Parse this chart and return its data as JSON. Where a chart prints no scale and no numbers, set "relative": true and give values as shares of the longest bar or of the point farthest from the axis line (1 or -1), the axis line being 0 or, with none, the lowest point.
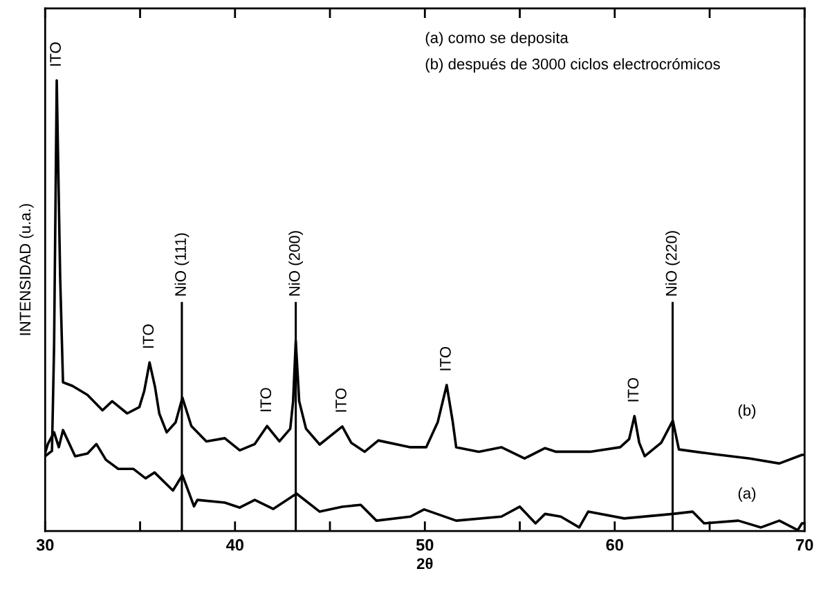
{
  "chart_data": {
    "type": "line",
    "relative": true,
    "xlabel": "2θ",
    "ylabel": "INTENSIDAD (u.a.)",
    "xlim": [
      30,
      70
    ],
    "xticks": [
      30,
      {
        "value": 35,
        "label": null
      },
      40,
      {
        "value": 45,
        "label": null
      },
      50,
      {
        "value": 55,
        "label": null
      },
      60,
      {
        "value": 65,
        "label": null
      },
      70
    ],
    "grid": false,
    "legend": false,
    "marker": "none",
    "line_style": "solid",
    "series": [
      {
        "name": "(b)",
        "color": "#000000",
        "x": [
          30.0,
          30.36,
          30.47,
          30.61,
          30.79,
          30.94,
          31.44,
          32.23,
          33.02,
          33.53,
          34.32,
          34.96,
          35.22,
          35.5,
          35.79,
          36.01,
          36.4,
          36.87,
          37.23,
          37.7,
          38.49,
          39.46,
          40.25,
          41.04,
          41.69,
          42.34,
          42.91,
          43.06,
          43.2,
          43.38,
          43.74,
          44.46,
          45.65,
          46.12,
          46.83,
          47.55,
          49.24,
          50.07,
          50.68,
          51.15,
          51.47,
          51.65,
          52.84,
          54.03,
          55.25,
          56.33,
          56.91,
          58.71,
          60.29,
          60.76,
          61.04,
          61.29,
          61.58,
          62.45,
          63.06,
          63.38,
          65.32,
          67.12,
          68.67,
          69.86,
          70.0
        ],
        "values": [
          0.166,
          0.178,
          0.41,
          1.0,
          0.564,
          0.33,
          0.322,
          0.302,
          0.268,
          0.288,
          0.261,
          0.275,
          0.311,
          0.374,
          0.319,
          0.261,
          0.219,
          0.241,
          0.296,
          0.233,
          0.199,
          0.206,
          0.179,
          0.193,
          0.233,
          0.199,
          0.227,
          0.288,
          0.422,
          0.288,
          0.227,
          0.192,
          0.232,
          0.196,
          0.176,
          0.201,
          0.186,
          0.186,
          0.242,
          0.324,
          0.242,
          0.186,
          0.176,
          0.186,
          0.161,
          0.184,
          0.176,
          0.176,
          0.186,
          0.204,
          0.255,
          0.196,
          0.166,
          0.196,
          0.245,
          0.181,
          0.17,
          0.161,
          0.15,
          0.169,
          0.169
        ]
      },
      {
        "name": "(a)",
        "color": "#000000",
        "x": [
          30.0,
          30.14,
          30.47,
          30.72,
          30.94,
          31.58,
          32.23,
          32.7,
          33.2,
          33.85,
          34.64,
          35.29,
          35.76,
          36.73,
          37.23,
          37.84,
          38.02,
          39.46,
          40.25,
          41.04,
          42.01,
          43.24,
          44.46,
          45.65,
          46.62,
          47.45,
          49.24,
          49.96,
          51.65,
          54.03,
          55.0,
          55.83,
          56.33,
          57.16,
          58.13,
          58.6,
          60.5,
          63.06,
          64.1,
          64.71,
          66.51,
          67.7,
          68.67,
          69.64,
          69.86,
          70.0
        ],
        "values": [
          0.173,
          0.193,
          0.219,
          0.186,
          0.224,
          0.166,
          0.172,
          0.193,
          0.158,
          0.138,
          0.138,
          0.117,
          0.13,
          0.09,
          0.124,
          0.055,
          0.069,
          0.063,
          0.052,
          0.069,
          0.049,
          0.083,
          0.043,
          0.054,
          0.058,
          0.023,
          0.032,
          0.048,
          0.023,
          0.032,
          0.054,
          0.017,
          0.038,
          0.032,
          0.008,
          0.043,
          0.028,
          0.038,
          0.043,
          0.017,
          0.023,
          0.008,
          0.023,
          0.002,
          0.017,
          0.017
        ]
      }
    ],
    "ref_lines": [
      {
        "axis": "x",
        "value": 37.2,
        "label": "NiO (111)",
        "color": "#000000",
        "line_style": "solid"
      },
      {
        "axis": "x",
        "value": 43.2,
        "label": "NiO (200)",
        "color": "#000000",
        "line_style": "solid"
      },
      {
        "axis": "x",
        "value": 63.05,
        "label": "NiO (220)",
        "color": "#000000",
        "line_style": "solid"
      }
    ],
    "annotations": [
      {
        "text": "ITO",
        "x": 30.61,
        "y": 1.0
      },
      {
        "text": "ITO",
        "x": 35.5,
        "y": 0.374
      },
      {
        "text": "ITO",
        "x": 41.69,
        "y": 0.233
      },
      {
        "text": "ITO",
        "x": 45.65,
        "y": 0.232
      },
      {
        "text": "ITO",
        "x": 51.15,
        "y": 0.324
      },
      {
        "text": "ITO",
        "x": 61.04,
        "y": 0.255
      },
      "(a) como se deposita",
      "(b) después de 3000 ciclos electrocrómicos"
    ]
  }
}
